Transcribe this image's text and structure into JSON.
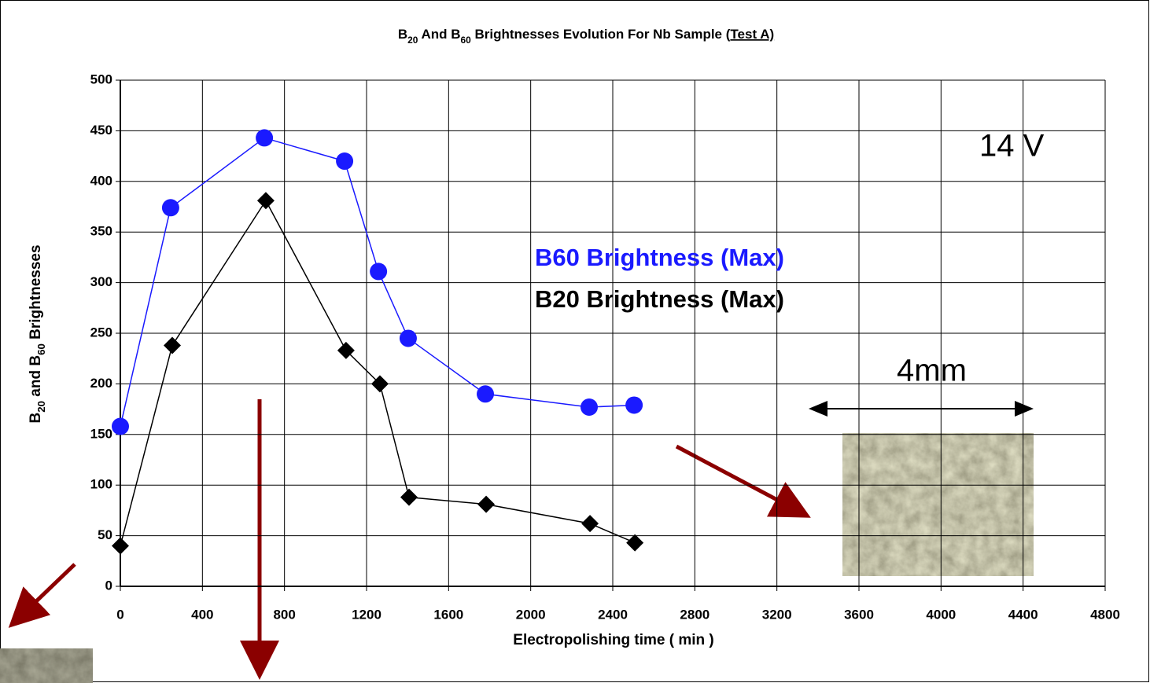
{
  "chart_data": {
    "type": "line",
    "title": [
      {
        "text": "B"
      },
      {
        "text": "20",
        "sub": true
      },
      {
        "text": " And B"
      },
      {
        "text": "60",
        "sub": true
      },
      {
        "text": " Brightnesses Evolution For Nb Sample ("
      },
      {
        "text": "Test A)",
        "underline": true
      }
    ],
    "y_label": [
      {
        "text": "B"
      },
      {
        "text": "20",
        "sub": true
      },
      {
        "text": " and B"
      },
      {
        "text": "60",
        "sub": true
      },
      {
        "text": " Brightnesses"
      }
    ],
    "x_label": "Electropolishing time ( min )",
    "xlim": [
      0,
      4800
    ],
    "xticks": [
      0,
      400,
      800,
      1200,
      1600,
      2000,
      2400,
      2800,
      3200,
      3600,
      4000,
      4400,
      4800
    ],
    "ylim": [
      0,
      500
    ],
    "yticks": [
      0,
      50,
      100,
      150,
      200,
      250,
      300,
      350,
      400,
      450,
      500
    ],
    "grid": true,
    "series": [
      {
        "name": "B60 Brightness (Max)",
        "color": "#1a1aff",
        "marker": "circle",
        "x": [
          0,
          245,
          702,
          1093,
          1258,
          1403,
          1779,
          2285,
          2504
        ],
        "values": [
          158,
          374,
          443,
          420,
          311,
          245,
          190,
          177,
          179
        ]
      },
      {
        "name": "B20 Brightness (Max)",
        "color": "#000000",
        "marker": "diamond",
        "x": [
          0,
          253,
          709,
          1100,
          1265,
          1407,
          1783,
          2289,
          2508
        ],
        "values": [
          40,
          238,
          381,
          233,
          200,
          88,
          81,
          62,
          43
        ]
      }
    ],
    "annotations": [
      "14 V",
      "4mm"
    ]
  }
}
